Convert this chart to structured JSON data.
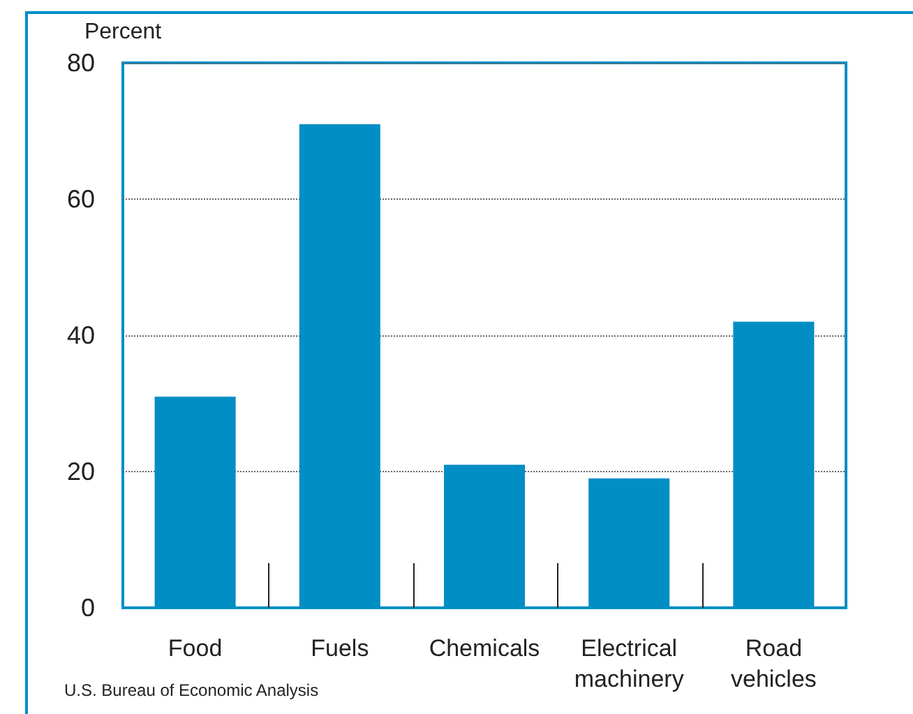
{
  "chart_data": {
    "type": "bar",
    "ylabel": "Percent",
    "categories": [
      "Food",
      "Fuels",
      "Chemicals",
      "Electrical\nmachinery",
      "Road\nvehicles"
    ],
    "values": [
      31,
      71,
      21,
      19,
      42
    ],
    "color": "#008ec4",
    "ylim": [
      0,
      80
    ],
    "yticks": [
      0,
      20,
      40,
      60,
      80
    ],
    "grid": "y",
    "annotations": [
      "U.S. Bureau of Economic Analysis"
    ]
  }
}
